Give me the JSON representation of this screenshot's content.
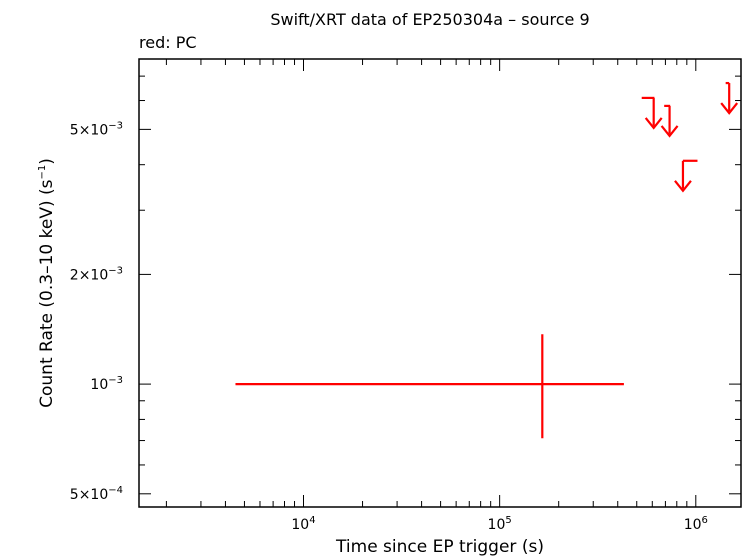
{
  "chart_data": {
    "type": "scatter",
    "title": "Swift/XRT data of EP250304a – source 9",
    "subtitle": "red: PC",
    "xlabel": "Time since EP trigger (s)",
    "ylabel_main": "Count Rate (0.3–10 keV) (s",
    "ylabel_sup": "−1",
    "ylabel_close": ")",
    "x_scale": "log",
    "y_scale": "log",
    "xlim": [
      1450,
      1700000
    ],
    "ylim": [
      0.00046,
      0.0078
    ],
    "x_ticks": [
      {
        "value": 10000,
        "base": "10",
        "exp": "4"
      },
      {
        "value": 100000,
        "base": "10",
        "exp": "5"
      },
      {
        "value": 1000000,
        "base": "10",
        "exp": "6"
      }
    ],
    "y_ticks": [
      {
        "value": 0.0005,
        "mant": "5×10",
        "exp": "−4"
      },
      {
        "value": 0.001,
        "mant": "10",
        "exp": "−3"
      },
      {
        "value": 0.002,
        "mant": "2×10",
        "exp": "−3"
      },
      {
        "value": 0.005,
        "mant": "5×10",
        "exp": "−3"
      }
    ],
    "series_color": "#ff0000",
    "points": [
      {
        "x": 165000,
        "y": 0.001,
        "xerr": [
          4500,
          430000
        ],
        "yerr": [
          0.00071,
          0.00137
        ]
      }
    ],
    "upper_limits": [
      {
        "x": 610000,
        "y": 0.0061,
        "xerr": [
          530000,
          615000
        ]
      },
      {
        "x": 735000,
        "y": 0.0058,
        "xerr": [
          690000,
          740000
        ]
      },
      {
        "x": 860000,
        "y": 0.0041,
        "xerr": [
          860000,
          1020000
        ]
      },
      {
        "x": 1480000,
        "y": 0.0067,
        "xerr": [
          1420000,
          1480000
        ]
      }
    ]
  }
}
